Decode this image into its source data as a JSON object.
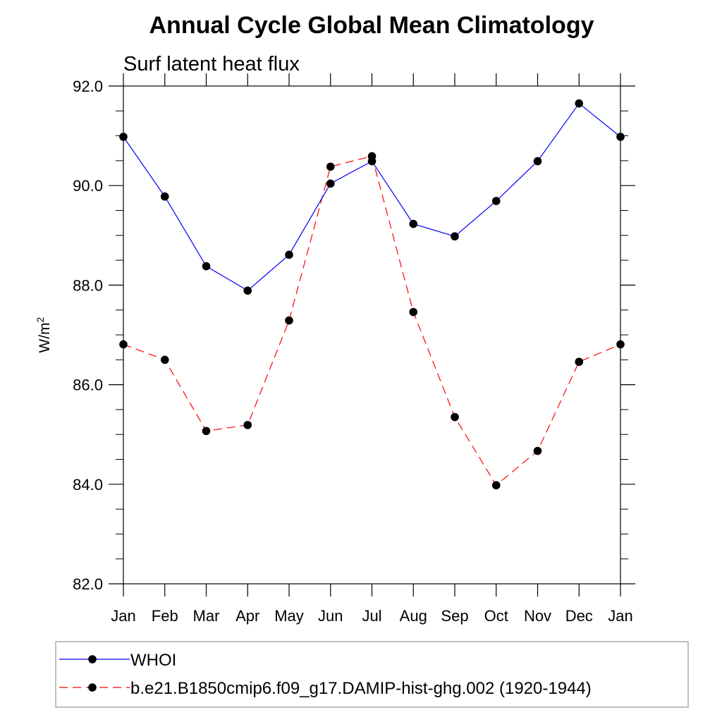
{
  "chart_data": {
    "type": "line",
    "title": "Annual Cycle Global Mean Climatology",
    "subtitle": "Surf latent heat flux",
    "ylabel": "W/m",
    "ylabel_superscript": "2",
    "xlabel": "",
    "categories": [
      "Jan",
      "Feb",
      "Mar",
      "Apr",
      "May",
      "Jun",
      "Jul",
      "Aug",
      "Sep",
      "Oct",
      "Nov",
      "Dec",
      "Jan"
    ],
    "ylim": [
      82.0,
      92.0
    ],
    "yticks": [
      82.0,
      84.0,
      86.0,
      88.0,
      90.0,
      92.0
    ],
    "ytick_labels": [
      "82.0",
      "84.0",
      "86.0",
      "88.0",
      "90.0",
      "92.0"
    ],
    "grid": false,
    "legend_position": "bottom",
    "series": [
      {
        "name": "WHOI",
        "values": [
          90.98,
          89.78,
          88.38,
          87.89,
          88.61,
          90.04,
          90.49,
          89.23,
          88.98,
          89.69,
          90.49,
          91.65,
          90.98
        ],
        "color": "#0000ff",
        "line_style": "solid",
        "marker": "circle"
      },
      {
        "name": "b.e21.B1850cmip6.f09_g17.DAMIP-hist-ghg.002 (1920-1944)",
        "values": [
          86.81,
          86.5,
          85.07,
          85.19,
          87.29,
          90.38,
          90.59,
          87.46,
          85.35,
          83.98,
          84.67,
          86.46,
          86.81
        ],
        "color": "#ff0000",
        "line_style": "dashed",
        "marker": "circle"
      }
    ]
  }
}
